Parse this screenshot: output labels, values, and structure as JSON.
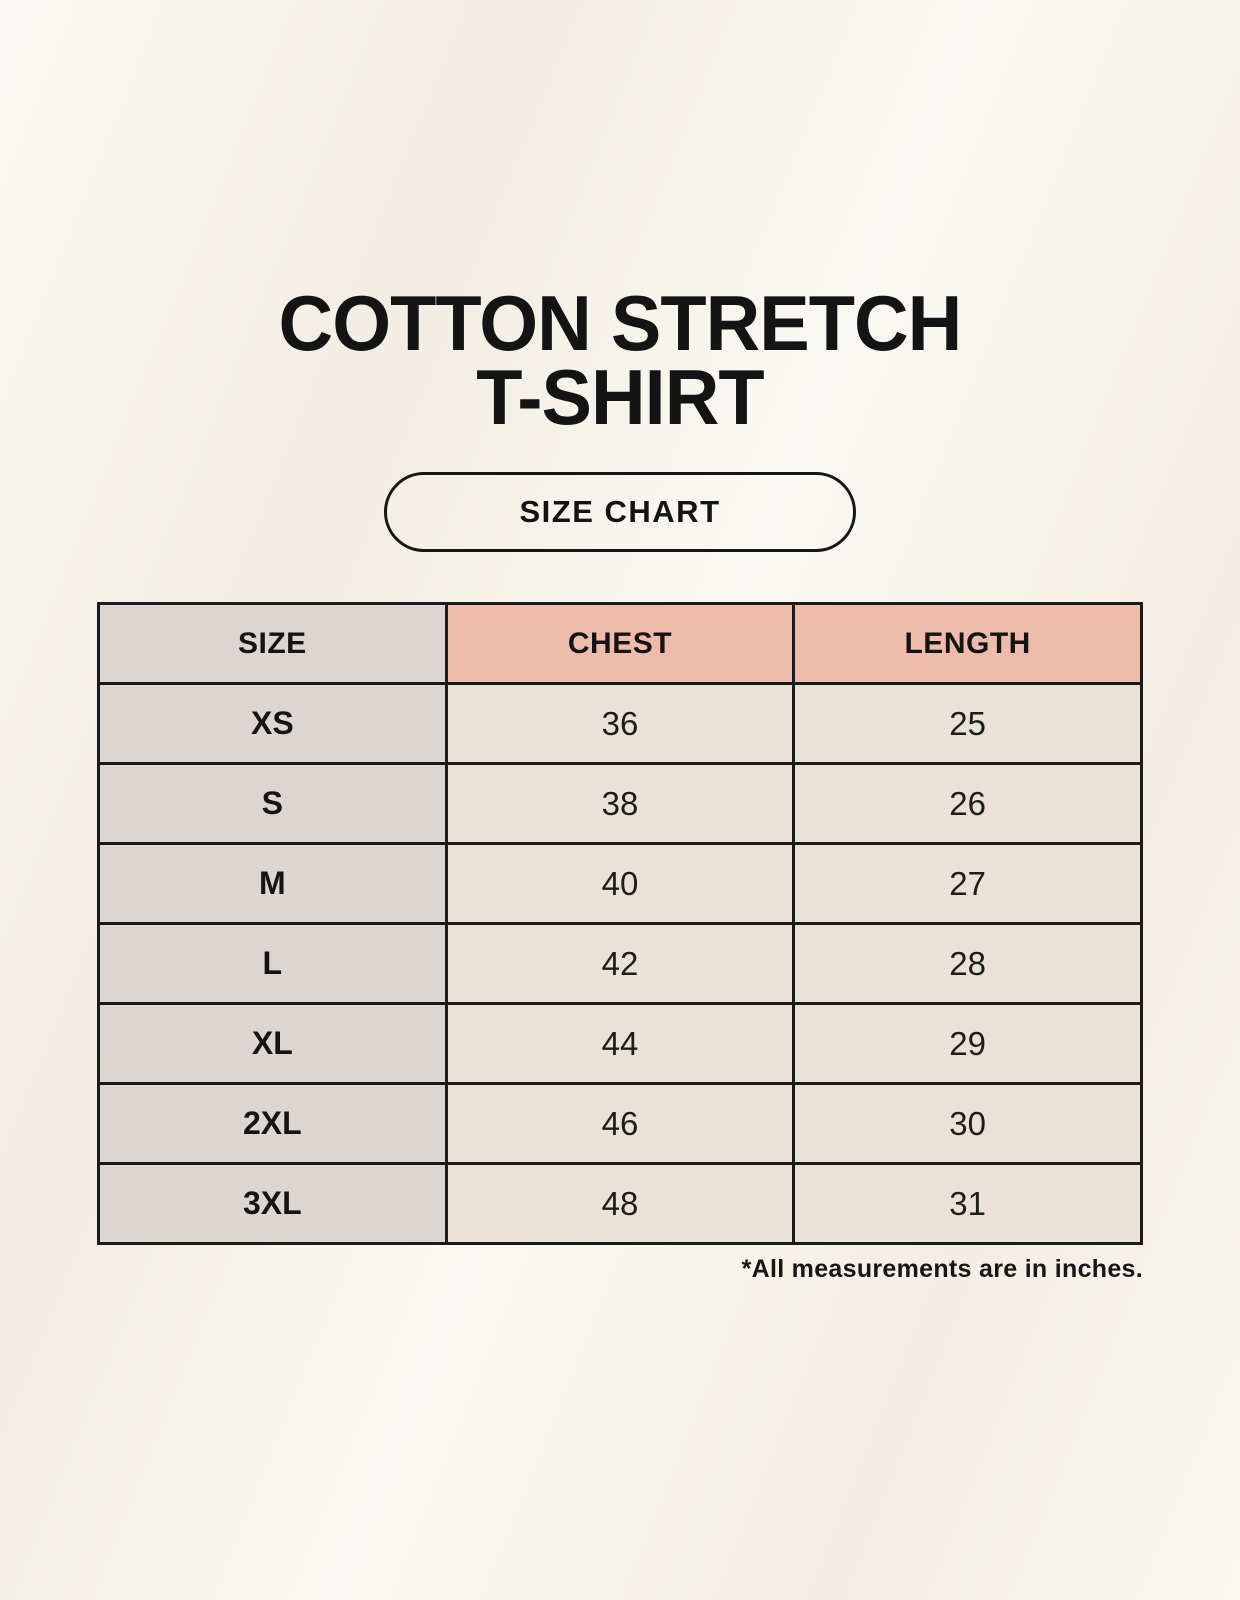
{
  "page": {
    "title_line_1": "COTTON STRETCH",
    "title_line_2": "T-SHIRT",
    "badge_label": "SIZE CHART",
    "footnote": "*All measurements are in inches."
  },
  "colors": {
    "page_background": "#f6f2e8",
    "size_column_background": "#ddd6d0",
    "accent_header_background": "#efbcab",
    "data_cell_background": "#e9e2d5",
    "table_border": "#1b1b1b",
    "text": "#171717"
  },
  "table": {
    "headers": [
      "SIZE",
      "CHEST",
      "LENGTH"
    ],
    "rows": [
      {
        "size": "XS",
        "chest": "36",
        "length": "25"
      },
      {
        "size": "S",
        "chest": "38",
        "length": "26"
      },
      {
        "size": "M",
        "chest": "40",
        "length": "27"
      },
      {
        "size": "L",
        "chest": "42",
        "length": "28"
      },
      {
        "size": "XL",
        "chest": "44",
        "length": "29"
      },
      {
        "size": "2XL",
        "chest": "46",
        "length": "30"
      },
      {
        "size": "3XL",
        "chest": "48",
        "length": "31"
      }
    ]
  },
  "chart_data": {
    "type": "table",
    "title": "COTTON STRETCH T-SHIRT",
    "subtitle": "SIZE CHART",
    "columns": [
      "SIZE",
      "CHEST",
      "LENGTH"
    ],
    "rows": [
      [
        "XS",
        36,
        25
      ],
      [
        "S",
        38,
        26
      ],
      [
        "M",
        40,
        27
      ],
      [
        "L",
        42,
        28
      ],
      [
        "XL",
        44,
        29
      ],
      [
        "2XL",
        46,
        30
      ],
      [
        "3XL",
        48,
        31
      ]
    ],
    "units": "inches",
    "note": "*All measurements are in inches."
  }
}
